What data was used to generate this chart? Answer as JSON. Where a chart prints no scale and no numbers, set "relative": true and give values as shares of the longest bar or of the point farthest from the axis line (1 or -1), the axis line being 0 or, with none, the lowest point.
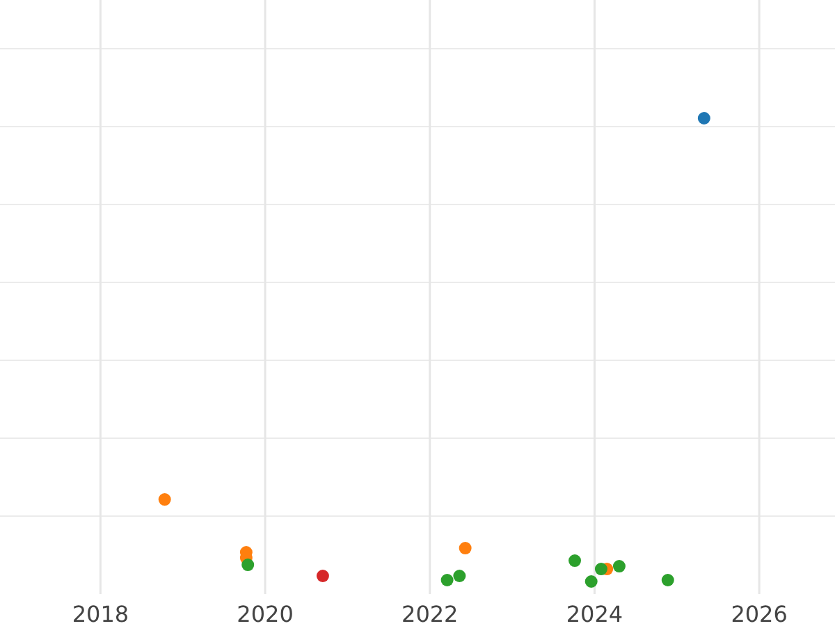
{
  "chart_data": {
    "type": "scatter",
    "relative": true,
    "grid": true,
    "marker": "circle",
    "tick_labels": "x",
    "xlim": [
      2016.78,
      2026.92
    ],
    "xticks": [
      2018,
      2020,
      2022,
      2024,
      2026
    ],
    "series": [
      {
        "color": "#1f77b4",
        "x": [
          2025.33
        ],
        "values": [
          1
        ]
      },
      {
        "color": "#ff7f0e",
        "x": [
          2018.78,
          2019.77,
          2019.77,
          2022.43,
          2024.15
        ],
        "values": [
          0.177,
          0.063,
          0.051,
          0.072,
          0.027
        ]
      },
      {
        "color": "#2ca02c",
        "x": [
          2019.79,
          2022.21,
          2022.36,
          2023.76,
          2023.96,
          2024.08,
          2024.3,
          2024.89
        ],
        "values": [
          0.036,
          0.003,
          0.012,
          0.045,
          0,
          0.027,
          0.033,
          0.003
        ]
      },
      {
        "color": "#d62728",
        "x": [
          2020.7
        ],
        "values": [
          0.012
        ]
      }
    ]
  }
}
